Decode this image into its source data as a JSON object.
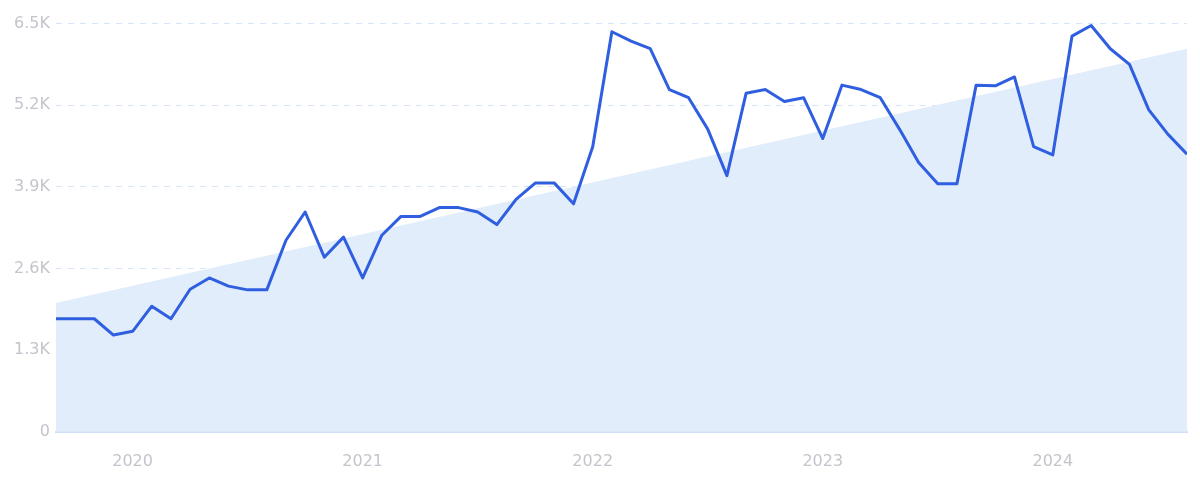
{
  "chart_data": {
    "type": "line",
    "x": [
      "2019-09",
      "2019-10",
      "2019-11",
      "2019-12",
      "2020-01",
      "2020-02",
      "2020-03",
      "2020-04",
      "2020-05",
      "2020-06",
      "2020-07",
      "2020-08",
      "2020-09",
      "2020-10",
      "2020-11",
      "2020-12",
      "2021-01",
      "2021-02",
      "2021-03",
      "2021-04",
      "2021-05",
      "2021-06",
      "2021-07",
      "2021-08",
      "2021-09",
      "2021-10",
      "2021-11",
      "2021-12",
      "2022-01",
      "2022-02",
      "2022-03",
      "2022-04",
      "2022-05",
      "2022-06",
      "2022-07",
      "2022-08",
      "2022-09",
      "2022-10",
      "2022-11",
      "2022-12",
      "2023-01",
      "2023-02",
      "2023-03",
      "2023-04",
      "2023-05",
      "2023-06",
      "2023-07",
      "2023-08",
      "2023-09",
      "2023-10",
      "2023-11",
      "2023-12",
      "2024-01",
      "2024-02",
      "2024-03",
      "2024-04",
      "2024-05",
      "2024-06",
      "2024-07",
      "2024-08"
    ],
    "series": [
      {
        "type": "area",
        "color": "#e2edfb",
        "x": [
          "2019-09",
          "2024-08"
        ],
        "values": [
          2050,
          6100
        ]
      },
      {
        "type": "line",
        "color": "#2f5fe0",
        "values": [
          1800,
          1800,
          1800,
          1540,
          1600,
          2000,
          1800,
          2270,
          2450,
          2320,
          2260,
          2260,
          3050,
          3500,
          2780,
          3100,
          2450,
          3130,
          3430,
          3430,
          3570,
          3570,
          3500,
          3300,
          3700,
          3960,
          3960,
          3630,
          4540,
          6370,
          6220,
          6100,
          5450,
          5320,
          4820,
          4080,
          5390,
          5450,
          5260,
          5320,
          4670,
          5520,
          5450,
          5320,
          4820,
          4290,
          3950,
          3950,
          5520,
          5510,
          5650,
          4540,
          4410,
          6300,
          6470,
          6100,
          5850,
          5130,
          4740,
          4420
        ]
      }
    ],
    "xlim": [
      "2019-09",
      "2024-08"
    ],
    "xticks": [
      {
        "value": "2020-01",
        "label": "2020"
      },
      {
        "value": "2021-01",
        "label": "2021"
      },
      {
        "value": "2022-01",
        "label": "2022"
      },
      {
        "value": "2023-01",
        "label": "2023"
      },
      {
        "value": "2024-01",
        "label": "2024"
      }
    ],
    "ylim": [
      0,
      6500
    ],
    "yticks": [
      0,
      {
        "value": 1300,
        "label": "1.3K"
      },
      {
        "value": 2600,
        "label": "2.6K"
      },
      {
        "value": 3900,
        "label": "3.9K"
      },
      {
        "value": 5200,
        "label": "5.2K"
      },
      {
        "value": 6500,
        "label": "6.5K"
      }
    ],
    "grid": "y",
    "line_style": "solid",
    "marker": "none",
    "legend": false
  }
}
